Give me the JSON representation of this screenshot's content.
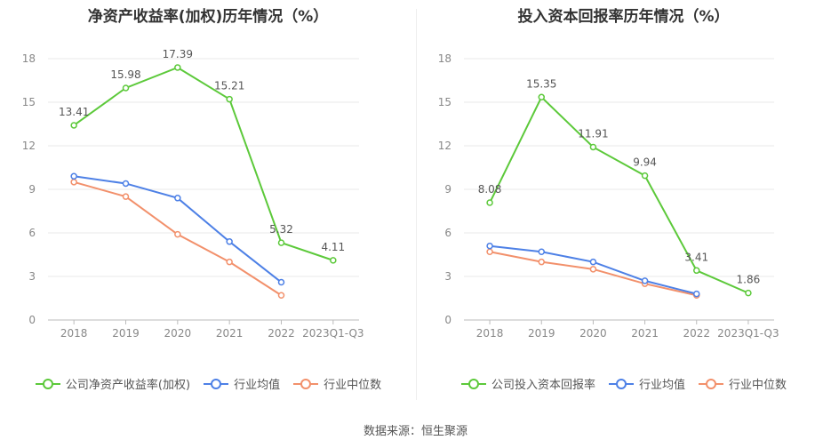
{
  "source_label": "数据来源：恒生聚源",
  "colors": {
    "company": "#5cc93a",
    "average": "#4d80e6",
    "median": "#f2906b"
  },
  "chart_data": [
    {
      "type": "line",
      "title": "净资产收益率(加权)历年情况（%）",
      "categories": [
        "2018",
        "2019",
        "2020",
        "2021",
        "2022",
        "2023Q1-Q3"
      ],
      "ylim": [
        0,
        18
      ],
      "yticks": [
        "0",
        "3",
        "6",
        "9",
        "12",
        "15",
        "18"
      ],
      "series": [
        {
          "name": "公司净资产收益率(加权)",
          "key": "company",
          "values": [
            13.41,
            15.98,
            17.39,
            15.21,
            5.32,
            4.11
          ],
          "labels": [
            "13.41",
            "15.98",
            "17.39",
            "15.21",
            "5.32",
            "4.11"
          ]
        },
        {
          "name": "行业均值",
          "key": "average",
          "values": [
            9.9,
            9.4,
            8.4,
            5.4,
            2.6,
            null
          ]
        },
        {
          "name": "行业中位数",
          "key": "median",
          "values": [
            9.5,
            8.5,
            5.9,
            4.0,
            1.7,
            null
          ]
        }
      ]
    },
    {
      "type": "line",
      "title": "投入资本回报率历年情况（%）",
      "categories": [
        "2018",
        "2019",
        "2020",
        "2021",
        "2022",
        "2023Q1-Q3"
      ],
      "ylim": [
        0,
        18
      ],
      "yticks": [
        "0",
        "3",
        "6",
        "9",
        "12",
        "15",
        "18"
      ],
      "series": [
        {
          "name": "公司投入资本回报率",
          "key": "company",
          "values": [
            8.08,
            15.35,
            11.91,
            9.94,
            3.41,
            1.86
          ],
          "labels": [
            "8.08",
            "15.35",
            "11.91",
            "9.94",
            "3.41",
            "1.86"
          ]
        },
        {
          "name": "行业均值",
          "key": "average",
          "values": [
            5.1,
            4.7,
            4.0,
            2.7,
            1.8,
            null
          ]
        },
        {
          "name": "行业中位数",
          "key": "median",
          "values": [
            4.7,
            4.0,
            3.5,
            2.5,
            1.7,
            null
          ]
        }
      ]
    }
  ]
}
